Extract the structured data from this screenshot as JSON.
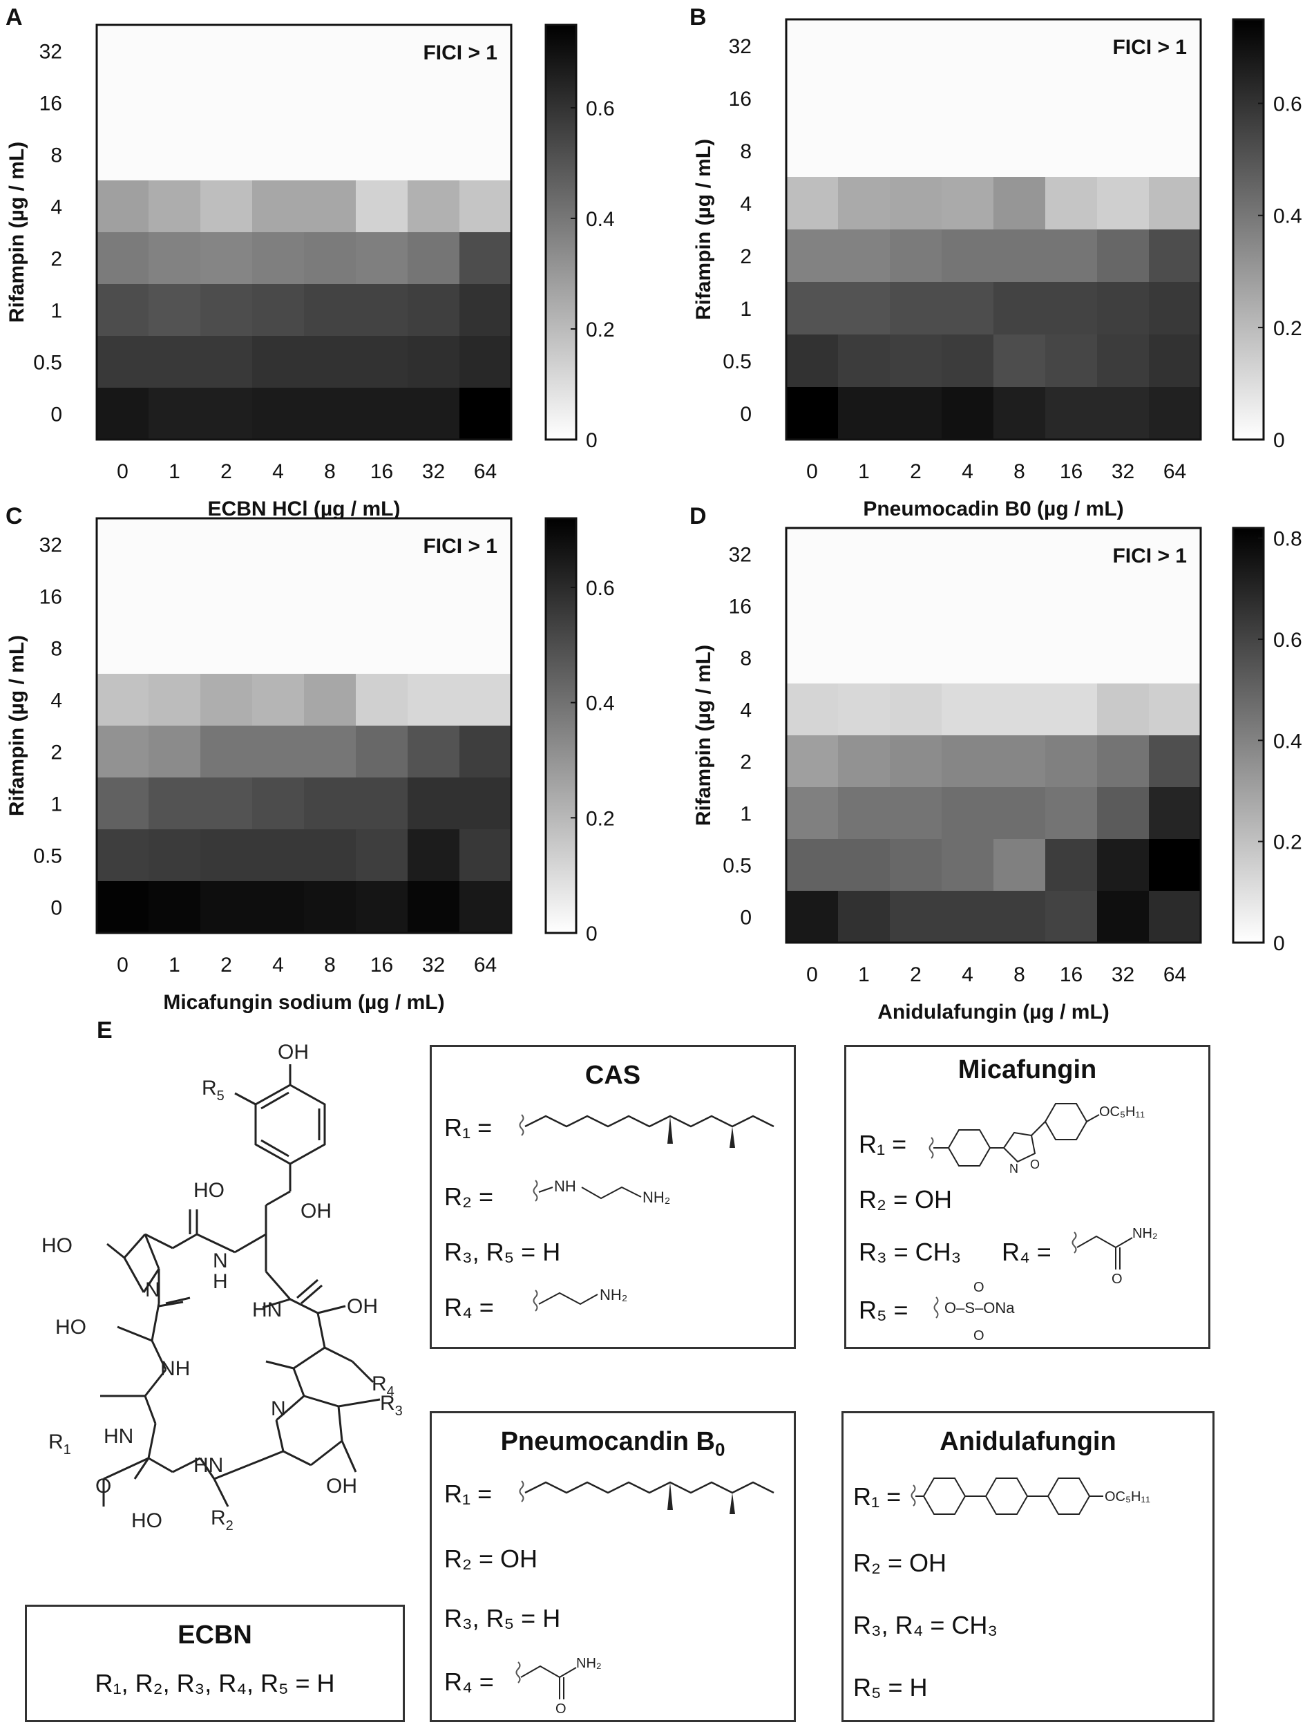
{
  "panel_letters": [
    "A",
    "B",
    "C",
    "D",
    "E"
  ],
  "chart_data": [
    {
      "type": "heatmap",
      "panel": "A",
      "xlabel": "ECBN HCl (µg / mL)",
      "ylabel": "Rifampin (µg / mL)",
      "x_ticks": [
        "0",
        "1",
        "2",
        "4",
        "8",
        "16",
        "32",
        "64"
      ],
      "y_ticks": [
        "32",
        "16",
        "8",
        "4",
        "2",
        "1",
        "0.5",
        "0"
      ],
      "annotation": "FICI > 1",
      "colorbar": {
        "min": 0,
        "max": 0.75,
        "ticks": [
          "0",
          "0.2",
          "0.4",
          "0.6"
        ],
        "tick_values": [
          0,
          0.2,
          0.4,
          0.6
        ]
      },
      "values": [
        [
          0,
          0,
          0,
          0,
          0,
          0,
          0,
          0
        ],
        [
          0,
          0,
          0,
          0,
          0,
          0,
          0,
          0
        ],
        [
          0,
          0,
          0,
          0,
          0,
          0,
          0,
          0
        ],
        [
          0.27,
          0.23,
          0.18,
          0.25,
          0.25,
          0.12,
          0.22,
          0.16
        ],
        [
          0.38,
          0.36,
          0.35,
          0.37,
          0.38,
          0.37,
          0.4,
          0.52
        ],
        [
          0.52,
          0.5,
          0.52,
          0.53,
          0.55,
          0.55,
          0.56,
          0.6
        ],
        [
          0.58,
          0.58,
          0.58,
          0.6,
          0.6,
          0.6,
          0.61,
          0.63
        ],
        [
          0.68,
          0.66,
          0.66,
          0.67,
          0.67,
          0.67,
          0.67,
          0.75
        ]
      ]
    },
    {
      "type": "heatmap",
      "panel": "B",
      "xlabel": "Pneumocadin B0 (µg / mL)",
      "ylabel": "Rifampin (µg / mL)",
      "x_ticks": [
        "0",
        "1",
        "2",
        "4",
        "8",
        "16",
        "32",
        "64"
      ],
      "y_ticks": [
        "32",
        "16",
        "8",
        "4",
        "2",
        "1",
        "0.5",
        "0"
      ],
      "annotation": "FICI > 1",
      "colorbar": {
        "min": 0,
        "max": 0.75,
        "ticks": [
          "0",
          "0.2",
          "0.4",
          "0.6"
        ],
        "tick_values": [
          0,
          0.2,
          0.4,
          0.6
        ]
      },
      "values": [
        [
          0,
          0,
          0,
          0,
          0,
          0,
          0,
          0
        ],
        [
          0,
          0,
          0,
          0,
          0,
          0,
          0,
          0
        ],
        [
          0,
          0,
          0,
          0,
          0,
          0,
          0,
          0
        ],
        [
          0.18,
          0.24,
          0.25,
          0.24,
          0.3,
          0.16,
          0.13,
          0.18
        ],
        [
          0.36,
          0.36,
          0.38,
          0.4,
          0.4,
          0.4,
          0.44,
          0.52
        ],
        [
          0.5,
          0.5,
          0.52,
          0.52,
          0.55,
          0.55,
          0.56,
          0.58
        ],
        [
          0.6,
          0.57,
          0.56,
          0.57,
          0.52,
          0.54,
          0.57,
          0.6
        ],
        [
          0.75,
          0.68,
          0.68,
          0.7,
          0.66,
          0.63,
          0.63,
          0.65
        ]
      ]
    },
    {
      "type": "heatmap",
      "panel": "C",
      "xlabel": "Micafungin sodium (µg / mL)",
      "ylabel": "Rifampin (µg / mL)",
      "x_ticks": [
        "0",
        "1",
        "2",
        "4",
        "8",
        "16",
        "32",
        "64"
      ],
      "y_ticks": [
        "32",
        "16",
        "8",
        "4",
        "2",
        "1",
        "0.5",
        "0"
      ],
      "annotation": "FICI > 1",
      "colorbar": {
        "min": 0,
        "max": 0.72,
        "ticks": [
          "0",
          "0.2",
          "0.4",
          "0.6"
        ],
        "tick_values": [
          0,
          0.2,
          0.4,
          0.6
        ]
      },
      "values": [
        [
          0,
          0,
          0,
          0,
          0,
          0,
          0,
          0
        ],
        [
          0,
          0,
          0,
          0,
          0,
          0,
          0,
          0
        ],
        [
          0,
          0,
          0,
          0,
          0,
          0,
          0,
          0
        ],
        [
          0.16,
          0.18,
          0.22,
          0.2,
          0.24,
          0.12,
          0.1,
          0.1
        ],
        [
          0.3,
          0.32,
          0.38,
          0.38,
          0.38,
          0.42,
          0.48,
          0.54
        ],
        [
          0.44,
          0.48,
          0.48,
          0.5,
          0.52,
          0.52,
          0.58,
          0.58
        ],
        [
          0.54,
          0.55,
          0.56,
          0.56,
          0.56,
          0.54,
          0.64,
          0.56
        ],
        [
          0.71,
          0.7,
          0.68,
          0.68,
          0.67,
          0.66,
          0.7,
          0.65
        ]
      ]
    },
    {
      "type": "heatmap",
      "panel": "D",
      "xlabel": "Anidulafungin (µg / mL)",
      "ylabel": "Rifampin (µg / mL)",
      "x_ticks": [
        "0",
        "1",
        "2",
        "4",
        "8",
        "16",
        "32",
        "64"
      ],
      "y_ticks": [
        "32",
        "16",
        "8",
        "4",
        "2",
        "1",
        "0.5",
        "0"
      ],
      "annotation": "FICI > 1",
      "colorbar": {
        "min": 0,
        "max": 0.82,
        "ticks": [
          "0",
          "0.2",
          "0.4",
          "0.6",
          "0.8"
        ],
        "tick_values": [
          0,
          0.2,
          0.4,
          0.6,
          0.8
        ]
      },
      "values": [
        [
          0,
          0,
          0,
          0,
          0,
          0,
          0,
          0
        ],
        [
          0,
          0,
          0,
          0,
          0,
          0,
          0,
          0
        ],
        [
          0,
          0,
          0,
          0,
          0,
          0,
          0,
          0
        ],
        [
          0.12,
          0.11,
          0.12,
          0.1,
          0.1,
          0.1,
          0.16,
          0.14
        ],
        [
          0.3,
          0.34,
          0.36,
          0.38,
          0.38,
          0.4,
          0.44,
          0.56
        ],
        [
          0.4,
          0.44,
          0.44,
          0.46,
          0.46,
          0.44,
          0.52,
          0.7
        ],
        [
          0.5,
          0.5,
          0.48,
          0.46,
          0.4,
          0.62,
          0.73,
          0.82
        ],
        [
          0.74,
          0.66,
          0.62,
          0.62,
          0.62,
          0.6,
          0.77,
          0.68
        ]
      ]
    }
  ],
  "structure": {
    "core_labels": {
      "oh_top": "OH",
      "r5": "R",
      "r5_sub": "5",
      "ho_1": "HO",
      "oh_1": "OH",
      "ho_pro": "HO",
      "nh_1": "N",
      "nh_1h": "H",
      "n_pro": "N",
      "hn_2": "HN",
      "oh_2": "OH",
      "ho_thr": "HO",
      "nh_3": "NH",
      "r4": "R",
      "r4_sub": "4",
      "n_pyr": "N",
      "r3": "R",
      "r3_sub": "3",
      "r1": "R",
      "r1_sub": "1",
      "hn_4": "HN",
      "hn_5": "HN",
      "oh_pyr": "OH",
      "ho_orn": "HO",
      "r2": "R",
      "r2_sub": "2",
      "o": "O"
    },
    "ecbn": {
      "title": "ECBN",
      "line": "R₁, R₂, R₃, R₄, R₅ = H"
    },
    "cas": {
      "title": "CAS",
      "r1": "R₁ =",
      "r2": "R₂ =",
      "r2_group": "NH",
      "r2_group_end": "NH₂",
      "r35": "R₃, R₅ = H",
      "r4": "R₄ =",
      "r4_group": "NH₂"
    },
    "micafungin": {
      "title": "Micafungin",
      "r1": "R₁ =",
      "r1_tail": "OC₅H₁₁",
      "r1_n": "N",
      "r1_o": "O",
      "r2": "R₂ = OH",
      "r3": "R₃ = CH₃",
      "r4": "R₄ =",
      "r4_group": "NH₂",
      "r4_o": "O",
      "r5": "R₅ =",
      "r5_group": "O–S–ONa",
      "r5_o_top": "O",
      "r5_o_bot": "O"
    },
    "pneumocandin": {
      "title": "Pneumocandin B",
      "title_sub": "0",
      "r1": "R₁ =",
      "r2": "R₂ = OH",
      "r35": "R₃, R₅ = H",
      "r4": "R₄ =",
      "r4_group": "NH₂",
      "r4_o": "O"
    },
    "anidulafungin": {
      "title": "Anidulafungin",
      "r1": "R₁ =",
      "r1_tail": "OC₅H₁₁",
      "r2": "R₂ = OH",
      "r34": "R₃, R₄ = CH₃",
      "r5": "R₅ = H"
    }
  }
}
